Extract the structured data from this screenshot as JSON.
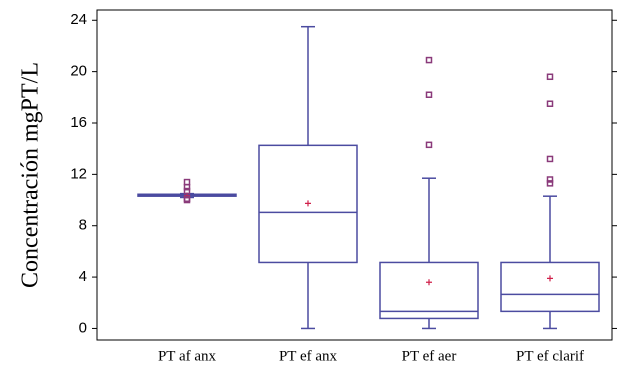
{
  "chart_data": {
    "type": "box",
    "y_label": "Concentración mgPT/L",
    "categories": [
      "PT af anx",
      "PT ef anx",
      "PT ef aer",
      "PT ef clarif"
    ],
    "boxes": [
      {
        "min": 10.2,
        "q1": 10.3,
        "median": 10.35,
        "q3": 10.45,
        "max": 10.5,
        "mean": 10.35,
        "outliers": [
          11.4,
          11.0,
          10.7,
          10.0,
          10.1
        ]
      },
      {
        "min": 0,
        "q1": 5.14,
        "median": 9.04,
        "q3": 14.26,
        "max": 23.5,
        "mean": 9.74,
        "outliers": []
      },
      {
        "min": 0,
        "q1": 0.78,
        "median": 1.33,
        "q3": 5.14,
        "max": 11.7,
        "mean": 3.6,
        "outliers": [
          20.9,
          18.2,
          14.3
        ]
      },
      {
        "min": 0,
        "q1": 1.33,
        "median": 2.65,
        "q3": 5.14,
        "max": 10.3,
        "mean": 3.9,
        "outliers": [
          19.6,
          17.5,
          13.2,
          11.6,
          11.3
        ]
      }
    ],
    "color": "#4b4ba0",
    "mean_color": "#d0204a",
    "outlier_color": "#8a3a7a",
    "ylim": [
      -0.9,
      24.8
    ],
    "yticks": [
      0,
      4,
      8,
      12,
      16,
      20,
      24
    ]
  }
}
